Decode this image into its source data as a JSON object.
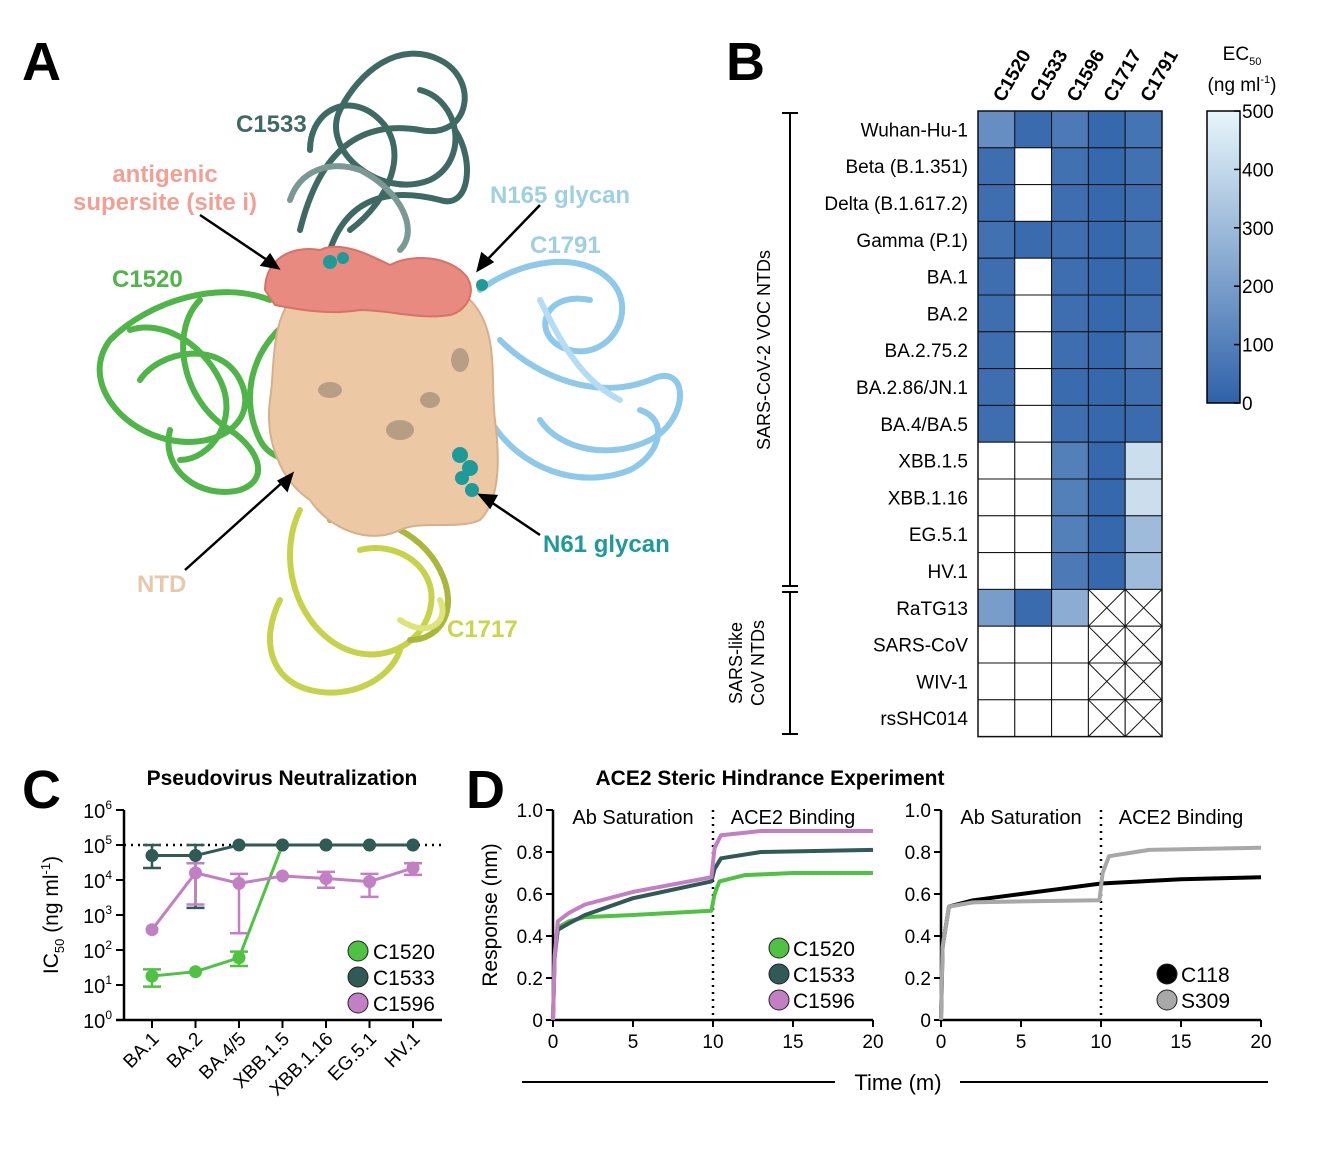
{
  "panels": {
    "A": {
      "letter": "A",
      "labels": {
        "c1533": "C1533",
        "supersite_1": "antigenic",
        "supersite_2": "supersite (site i)",
        "n165": "N165 glycan",
        "c1791": "C1791",
        "c1520": "C1520",
        "n61": "N61 glycan",
        "ntd": "NTD",
        "c1717": "C1717"
      },
      "colors": {
        "c1533": "#2f5a55",
        "supersite": "#e98a80",
        "c1791": "#8fc9ea",
        "c1520": "#4fb548",
        "ntd": "#ecc9a4",
        "c1717": "#c9d64a",
        "glycan": "#1f9a98"
      }
    },
    "B": {
      "letter": "B",
      "group1": "SARS-CoV-2 VOC NTDs",
      "group2_1": "SARS-like",
      "group2_2": "CoV NTDs",
      "colorbar_title_1": "EC",
      "colorbar_sub": "50",
      "colorbar_title_2": "(ng ml",
      "colorbar_sup": "-1",
      "colorbar_title_3": ")"
    },
    "C": {
      "letter": "C"
    },
    "D": {
      "letter": "D",
      "title": "ACE2 Steric Hindrance Experiment",
      "xlabel": "Time (m)",
      "phase1": "Ab Saturation",
      "phase2": "ACE2 Binding"
    }
  },
  "chart_data": [
    {
      "type": "heatmap",
      "panel": "B",
      "columns": [
        "C1520",
        "C1533",
        "C1596",
        "C1717",
        "C1791"
      ],
      "rows": [
        "Wuhan-Hu-1",
        "Beta (B.1.351)",
        "Delta (B.1.617.2)",
        "Gamma (P.1)",
        "BA.1",
        "BA.2",
        "BA.2.75.2",
        "BA.2.86/JN.1",
        "BA.4/BA.5",
        "XBB.1.5",
        "XBB.1.16",
        "EG.5.1",
        "HV.1",
        "RaTG13",
        "SARS-CoV",
        "WIV-1",
        "rsSHC014"
      ],
      "values": [
        [
          150,
          30,
          80,
          20,
          60
        ],
        [
          40,
          null,
          50,
          20,
          50
        ],
        [
          40,
          null,
          40,
          20,
          40
        ],
        [
          50,
          30,
          40,
          20,
          50
        ],
        [
          40,
          null,
          40,
          20,
          30
        ],
        [
          40,
          null,
          40,
          20,
          40
        ],
        [
          40,
          null,
          40,
          20,
          80
        ],
        [
          40,
          null,
          30,
          20,
          40
        ],
        [
          40,
          null,
          40,
          20,
          30
        ],
        [
          null,
          null,
          100,
          20,
          420
        ],
        [
          null,
          null,
          100,
          20,
          420
        ],
        [
          null,
          null,
          100,
          20,
          300
        ],
        [
          null,
          null,
          80,
          20,
          300
        ],
        [
          200,
          30,
          250,
          "X",
          "X"
        ],
        [
          null,
          null,
          null,
          "X",
          "X"
        ],
        [
          null,
          null,
          null,
          "X",
          "X"
        ],
        [
          null,
          null,
          null,
          "X",
          "X"
        ]
      ],
      "colorbar": {
        "min": 0,
        "max": 500,
        "ticks": [
          0,
          100,
          200,
          300,
          400,
          500
        ],
        "low_color": "#2f62aa",
        "high_color": "#e8f6fb"
      }
    },
    {
      "type": "line",
      "panel": "C",
      "title": "Pseudovirus Neutralization",
      "ylabel": "IC50 (ng ml-1)",
      "yscale": "log",
      "ylim": [
        1,
        1000000
      ],
      "ytick_labels": [
        "10^0",
        "10^1",
        "10^2",
        "10^3",
        "10^4",
        "10^5",
        "10^6"
      ],
      "categories": [
        "BA.1",
        "BA.2",
        "BA.4/5",
        "XBB.1.5",
        "XBB.1.16",
        "EG.5.1",
        "HV.1"
      ],
      "threshold": 100000,
      "legend": "bottom-right",
      "series": [
        {
          "name": "C1520",
          "color": "#4fc143",
          "values": [
            18,
            24,
            60,
            100000,
            100000,
            100000,
            100000
          ],
          "err_low": [
            9,
            null,
            35,
            null,
            null,
            null,
            null
          ],
          "err_high": [
            28,
            null,
            90,
            null,
            null,
            null,
            null
          ]
        },
        {
          "name": "C1533",
          "color": "#2f5a55",
          "values": [
            50000,
            50000,
            100000,
            100000,
            100000,
            100000,
            100000
          ],
          "err_low": [
            22000,
            1600,
            null,
            null,
            null,
            null,
            null
          ],
          "err_high": [
            100000,
            100000,
            null,
            null,
            null,
            null,
            null
          ]
        },
        {
          "name": "C1596",
          "color": "#c37fc4",
          "values": [
            380,
            16000,
            8000,
            13000,
            11000,
            9000,
            22000
          ],
          "err_low": [
            null,
            2000,
            300,
            null,
            6000,
            3300,
            14000
          ],
          "err_high": [
            null,
            30000,
            15000,
            null,
            17000,
            15000,
            30000
          ]
        }
      ]
    },
    {
      "type": "line",
      "panel": "D-left",
      "ylabel": "Response (nm)",
      "xlim": [
        0,
        20
      ],
      "ylim": [
        0,
        1.0
      ],
      "xticks": [
        0,
        5,
        10,
        15,
        20
      ],
      "yticks": [
        0,
        0.2,
        0.4,
        0.6,
        0.8,
        1.0
      ],
      "legend": "bottom-right",
      "series": [
        {
          "name": "C1520",
          "color": "#4fc143",
          "x": [
            0,
            0.1,
            0.3,
            1,
            2,
            5,
            9.9,
            10.1,
            10.4,
            12,
            15,
            20
          ],
          "y": [
            0,
            0.3,
            0.44,
            0.47,
            0.49,
            0.5,
            0.52,
            0.6,
            0.66,
            0.69,
            0.7,
            0.7
          ]
        },
        {
          "name": "C1533",
          "color": "#2f5a55",
          "x": [
            0,
            0.1,
            0.3,
            1,
            2,
            5,
            9.9,
            10.1,
            10.5,
            13,
            20
          ],
          "y": [
            0,
            0.3,
            0.43,
            0.46,
            0.5,
            0.58,
            0.66,
            0.72,
            0.77,
            0.8,
            0.81
          ]
        },
        {
          "name": "C1596",
          "color": "#c37fc4",
          "x": [
            0,
            0.1,
            0.3,
            1,
            2,
            5,
            9.9,
            10.1,
            10.5,
            13,
            20
          ],
          "y": [
            0,
            0.3,
            0.47,
            0.51,
            0.55,
            0.61,
            0.68,
            0.82,
            0.88,
            0.9,
            0.9
          ]
        }
      ]
    },
    {
      "type": "line",
      "panel": "D-right",
      "xlim": [
        0,
        20
      ],
      "ylim": [
        0,
        1.0
      ],
      "xticks": [
        0,
        5,
        10,
        15,
        20
      ],
      "yticks": [
        0,
        0.2,
        0.4,
        0.6,
        0.8,
        1.0
      ],
      "legend": "bottom-right",
      "series": [
        {
          "name": "C118",
          "color": "#000000",
          "x": [
            0,
            0.1,
            0.5,
            2,
            5,
            7,
            10,
            15,
            20
          ],
          "y": [
            0,
            0.35,
            0.54,
            0.57,
            0.6,
            0.62,
            0.65,
            0.67,
            0.68
          ]
        },
        {
          "name": "S309",
          "color": "#a8a8a8",
          "x": [
            0,
            0.1,
            0.5,
            2,
            5,
            9.9,
            10.1,
            10.5,
            13,
            20
          ],
          "y": [
            0,
            0.35,
            0.54,
            0.56,
            0.565,
            0.57,
            0.7,
            0.78,
            0.81,
            0.82
          ]
        }
      ]
    }
  ]
}
